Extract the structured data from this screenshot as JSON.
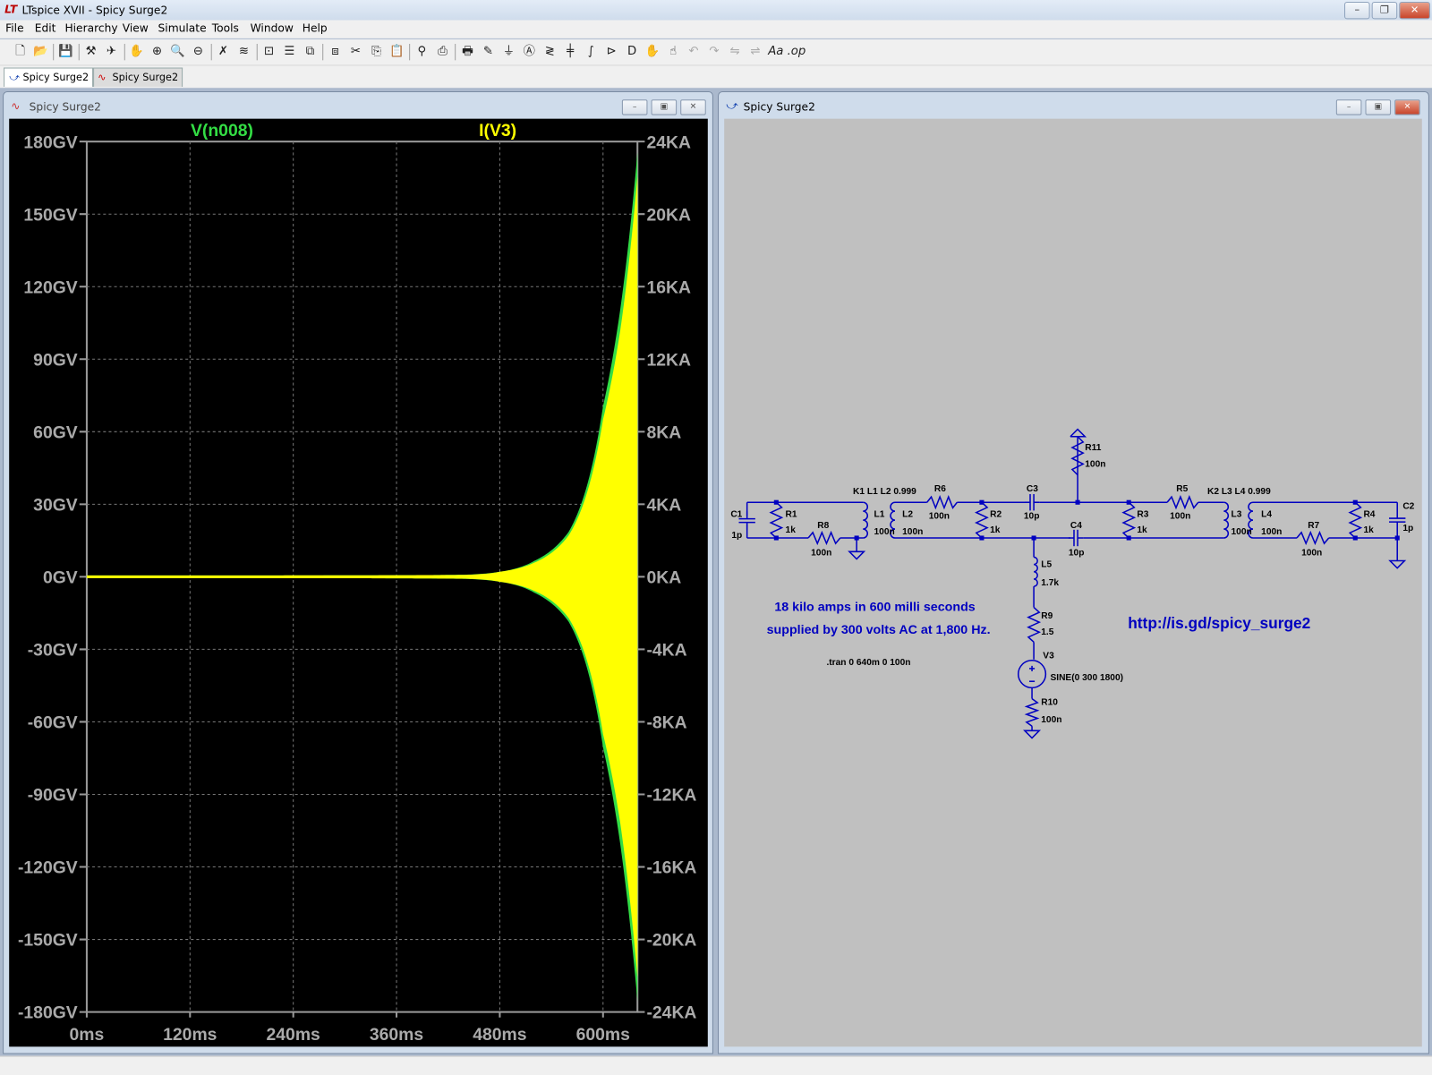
{
  "app": {
    "title": "LTspice XVII - Spicy Surge2",
    "logo": "LT",
    "window_controls": [
      "minimize",
      "restore",
      "close"
    ]
  },
  "menu": [
    "File",
    "Edit",
    "Hierarchy",
    "View",
    "Simulate",
    "Tools",
    "Window",
    "Help"
  ],
  "toolbar": [
    "new-schematic",
    "open",
    "save",
    "control-panel",
    "run",
    "halt",
    "zoom-in",
    "zoom-pan",
    "zoom-out",
    "zoom-cancel",
    "autorange",
    "fit",
    "tile-horizontal",
    "cascade",
    "tile-vertical",
    "cut",
    "copy",
    "paste",
    "find",
    "print-preview",
    "print",
    "wire",
    "ground",
    "label",
    "resistor",
    "capacitor",
    "inductor",
    "diode",
    "component",
    "move",
    "drag",
    "undo",
    "redo",
    "rotate",
    "mirror",
    "text",
    "spice-directive"
  ],
  "tabs": [
    {
      "label": "Spicy Surge2",
      "icon": "schematic-icon",
      "active": true
    },
    {
      "label": "Spicy Surge2",
      "icon": "waveform-icon",
      "active": false
    }
  ],
  "plot_window": {
    "title": "Spicy Surge2"
  },
  "schematic_window": {
    "title": "Spicy Surge2"
  },
  "colors": {
    "voltage_trace": "#33dd44",
    "current_trace": "#ffff00",
    "wire": "#0000c0",
    "plot_bg": "#000000",
    "schematic_bg": "#c0c0c0"
  },
  "chart_data": {
    "type": "line",
    "series": [
      {
        "name": "V(n008)",
        "color": "#33dd44",
        "axis": "left",
        "envelope_note": "oscillating, amplitude envelope",
        "t_ms": [
          0,
          440,
          480,
          520,
          560,
          600,
          620,
          640
        ],
        "amplitude_GV": [
          0,
          0.3,
          1.5,
          6,
          18,
          70,
          110,
          175
        ]
      },
      {
        "name": "I(V3)",
        "color": "#ffff00",
        "axis": "right",
        "t_ms": [
          0,
          440,
          480,
          520,
          560,
          600,
          620,
          640
        ],
        "amplitude_KA": [
          0,
          0.03,
          0.2,
          0.7,
          2.2,
          8.6,
          13.5,
          22
        ]
      }
    ],
    "xlim": [
      0,
      640
    ],
    "x_ticks": [
      "0ms",
      "120ms",
      "240ms",
      "360ms",
      "480ms",
      "600ms"
    ],
    "y_left_lim": [
      -180,
      180
    ],
    "y_left_ticks": [
      "180GV",
      "150GV",
      "120GV",
      "90GV",
      "60GV",
      "30GV",
      "0GV",
      "-30GV",
      "-60GV",
      "-90GV",
      "-120GV",
      "-150GV",
      "-180GV"
    ],
    "y_right_lim": [
      -24,
      24
    ],
    "y_right_ticks": [
      "24KA",
      "20KA",
      "16KA",
      "12KA",
      "8KA",
      "4KA",
      "0KA",
      "-4KA",
      "-8KA",
      "-12KA",
      "-16KA",
      "-20KA",
      "-24KA"
    ],
    "grid": true
  },
  "schematic": {
    "labels": {
      "C1": "C1",
      "C1v": "1p",
      "R1": "R1",
      "R1v": "1k",
      "R8": "R8",
      "R8v": "100n",
      "K1": "K1 L1 L2 0.999",
      "L1": "L1",
      "L1v": "100n",
      "L2": "L2",
      "L2v": "100n",
      "R6": "R6",
      "R6v": "100n",
      "R2": "R2",
      "R2v": "1k",
      "C3": "C3",
      "C3v": "10p",
      "R11": "R11",
      "R11v": "100n",
      "C4": "C4",
      "C4v": "10p",
      "R3": "R3",
      "R3v": "1k",
      "R5": "R5",
      "R5v": "100n",
      "K2": "K2 L3 L4 0.999",
      "L3": "L3",
      "L3v": "100n",
      "L4": "L4",
      "L4v": "100n",
      "R7": "R7",
      "R7v": "100n",
      "R4": "R4",
      "R4v": "1k",
      "C2": "C2",
      "C2v": "1p",
      "L5": "L5",
      "L5v": "1.7k",
      "R9": "R9",
      "R9v": "1.5",
      "V3": "V3",
      "V3v": "SINE(0 300 1800)",
      "R10": "R10",
      "R10v": "100n"
    },
    "comment1": "18 kilo amps in 600 milli seconds",
    "comment2": "supplied by 300 volts AC at 1,800 Hz.",
    "directive": ".tran 0 640m 0 100n",
    "url": "http://is.gd/spicy_surge2"
  }
}
